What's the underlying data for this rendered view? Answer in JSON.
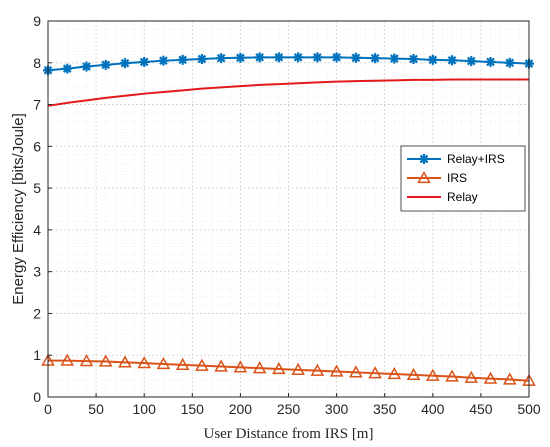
{
  "chart_data": {
    "type": "line",
    "title": "",
    "xlabel": "User Distance from IRS [m]",
    "ylabel": "Energy Efficiency [bits/Joule]",
    "xlim": [
      0,
      500
    ],
    "ylim": [
      0,
      9
    ],
    "xticks": [
      "0",
      "50",
      "100",
      "150",
      "200",
      "250",
      "300",
      "350",
      "400",
      "450",
      "500"
    ],
    "yticks": [
      "0",
      "1",
      "2",
      "3",
      "4",
      "5",
      "6",
      "7",
      "8",
      "9"
    ],
    "grid": true,
    "legend_position": "right",
    "x": [
      0,
      20,
      40,
      60,
      80,
      100,
      120,
      140,
      160,
      180,
      200,
      220,
      240,
      260,
      280,
      300,
      320,
      340,
      360,
      380,
      400,
      420,
      440,
      460,
      480,
      500
    ],
    "series": [
      {
        "name": "Relay+IRS",
        "color": "#0072BD",
        "marker": "asterisk",
        "values": [
          7.82,
          7.86,
          7.91,
          7.95,
          7.99,
          8.02,
          8.05,
          8.07,
          8.09,
          8.11,
          8.12,
          8.13,
          8.13,
          8.13,
          8.13,
          8.13,
          8.12,
          8.11,
          8.1,
          8.09,
          8.07,
          8.06,
          8.04,
          8.02,
          8.0,
          7.98
        ]
      },
      {
        "name": "IRS",
        "color": "#D95319",
        "marker": "triangle",
        "values": [
          0.87,
          0.87,
          0.86,
          0.85,
          0.83,
          0.81,
          0.79,
          0.77,
          0.75,
          0.73,
          0.71,
          0.69,
          0.67,
          0.65,
          0.63,
          0.61,
          0.59,
          0.57,
          0.55,
          0.53,
          0.51,
          0.49,
          0.46,
          0.44,
          0.42,
          0.39
        ]
      },
      {
        "name": "Relay",
        "color": "#E31A1C",
        "marker": "none",
        "values": [
          6.97,
          7.04,
          7.1,
          7.16,
          7.21,
          7.26,
          7.3,
          7.34,
          7.38,
          7.41,
          7.44,
          7.47,
          7.49,
          7.51,
          7.53,
          7.55,
          7.56,
          7.57,
          7.58,
          7.59,
          7.59,
          7.6,
          7.6,
          7.6,
          7.6,
          7.6
        ]
      }
    ]
  }
}
